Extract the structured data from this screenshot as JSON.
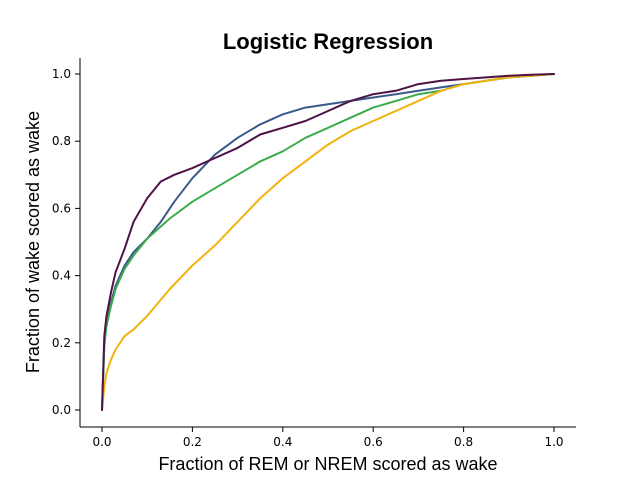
{
  "chart_data": {
    "type": "line",
    "title": "Logistic Regression",
    "xlabel": "Fraction of REM or NREM scored as wake",
    "ylabel": "Fraction of wake scored as wake",
    "xlim": [
      0.0,
      1.0
    ],
    "ylim": [
      0.0,
      1.0
    ],
    "xticks": [
      "0.0",
      "0.2",
      "0.4",
      "0.6",
      "0.8",
      "1.0"
    ],
    "yticks": [
      "0.0",
      "0.2",
      "0.4",
      "0.6",
      "0.8",
      "1.0"
    ],
    "grid": false,
    "legend": "none",
    "series": [
      {
        "color": "#3b5a8c",
        "x": [
          0,
          0.005,
          0.01,
          0.02,
          0.03,
          0.05,
          0.07,
          0.1,
          0.13,
          0.16,
          0.2,
          0.25,
          0.3,
          0.35,
          0.4,
          0.45,
          0.5,
          0.55,
          0.6,
          0.65,
          0.7,
          0.75,
          0.8,
          0.85,
          0.9,
          0.95,
          1.0
        ],
        "y": [
          0,
          0.2,
          0.26,
          0.32,
          0.37,
          0.43,
          0.47,
          0.51,
          0.56,
          0.62,
          0.69,
          0.76,
          0.81,
          0.85,
          0.88,
          0.9,
          0.91,
          0.92,
          0.93,
          0.94,
          0.95,
          0.96,
          0.97,
          0.98,
          0.99,
          0.995,
          1.0
        ]
      },
      {
        "color": "#3cab4a",
        "x": [
          0,
          0.005,
          0.01,
          0.02,
          0.03,
          0.05,
          0.07,
          0.1,
          0.15,
          0.2,
          0.25,
          0.3,
          0.35,
          0.4,
          0.45,
          0.5,
          0.55,
          0.6,
          0.65,
          0.7,
          0.75,
          0.8,
          0.85,
          0.9,
          0.95,
          1.0
        ],
        "y": [
          0,
          0.19,
          0.25,
          0.31,
          0.36,
          0.42,
          0.46,
          0.51,
          0.57,
          0.62,
          0.66,
          0.7,
          0.74,
          0.77,
          0.81,
          0.84,
          0.87,
          0.9,
          0.92,
          0.94,
          0.95,
          0.97,
          0.98,
          0.99,
          0.995,
          1.0
        ]
      },
      {
        "color": "#f2b20f",
        "x": [
          0,
          0.005,
          0.01,
          0.02,
          0.03,
          0.05,
          0.07,
          0.1,
          0.15,
          0.2,
          0.25,
          0.3,
          0.35,
          0.4,
          0.45,
          0.5,
          0.55,
          0.6,
          0.65,
          0.7,
          0.75,
          0.8,
          0.85,
          0.9,
          0.95,
          1.0
        ],
        "y": [
          0,
          0.07,
          0.11,
          0.15,
          0.18,
          0.22,
          0.24,
          0.28,
          0.36,
          0.43,
          0.49,
          0.56,
          0.63,
          0.69,
          0.74,
          0.79,
          0.83,
          0.86,
          0.89,
          0.92,
          0.95,
          0.97,
          0.98,
          0.99,
          0.995,
          1.0
        ]
      },
      {
        "color": "#4e1245",
        "x": [
          0,
          0.005,
          0.01,
          0.02,
          0.03,
          0.05,
          0.07,
          0.1,
          0.13,
          0.16,
          0.2,
          0.25,
          0.3,
          0.35,
          0.4,
          0.45,
          0.5,
          0.55,
          0.6,
          0.65,
          0.7,
          0.75,
          0.8,
          0.85,
          0.9,
          0.95,
          1.0
        ],
        "y": [
          0,
          0.22,
          0.28,
          0.35,
          0.41,
          0.48,
          0.56,
          0.63,
          0.68,
          0.7,
          0.72,
          0.75,
          0.78,
          0.82,
          0.84,
          0.86,
          0.89,
          0.92,
          0.94,
          0.95,
          0.97,
          0.98,
          0.985,
          0.99,
          0.995,
          0.998,
          1.0
        ]
      }
    ]
  }
}
